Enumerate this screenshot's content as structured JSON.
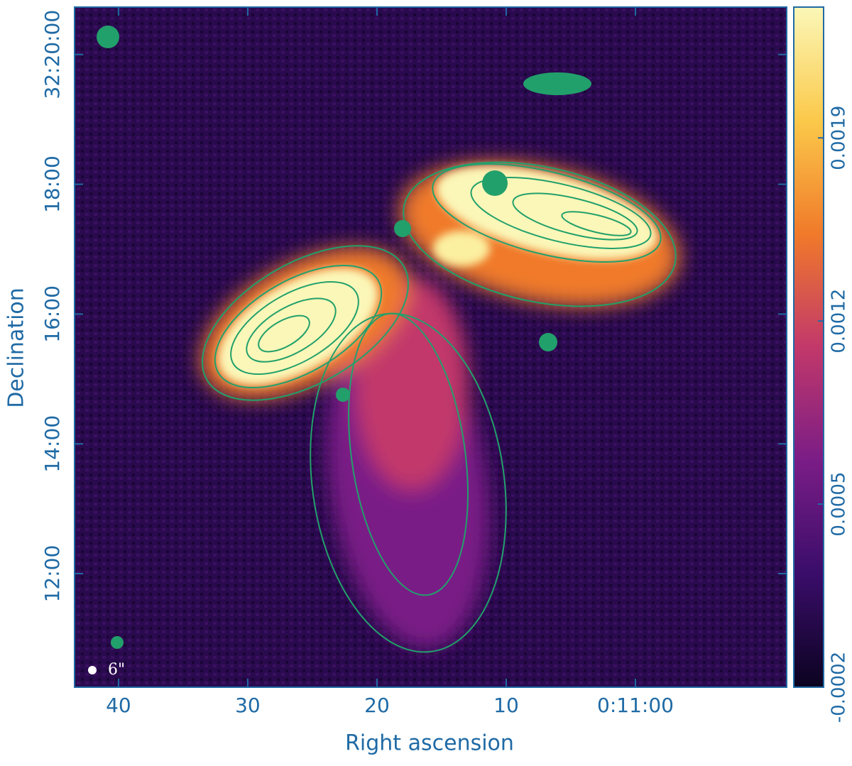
{
  "chart_data": {
    "type": "image",
    "x_label": "Right ascension",
    "y_label": "Declination",
    "xlim": [
      43.4,
      -11.7
    ],
    "xticks": [
      {
        "value": 40,
        "label": "40"
      },
      {
        "value": 30,
        "label": "30"
      },
      {
        "value": 20,
        "label": "20"
      },
      {
        "value": 10,
        "label": "10"
      },
      {
        "value": 0,
        "label": "0:11:00"
      }
    ],
    "ylim": [
      10.25,
      20.73
    ],
    "yticks": [
      {
        "value": 12,
        "label": "12:00"
      },
      {
        "value": 14,
        "label": "14:00"
      },
      {
        "value": 16,
        "label": "16:00"
      },
      {
        "value": 18,
        "label": "18:00"
      },
      {
        "value": 20,
        "label": "32:20:00"
      }
    ],
    "colorbar": {
      "lim": [
        -0.0002,
        0.0024
      ],
      "ticks": [
        -0.0002,
        0.0005,
        0.0012,
        0.0019
      ],
      "colors": [
        "#0b0320",
        "#3a0d6a",
        "#7a1d86",
        "#c2386a",
        "#f07a2a",
        "#fbc94a",
        "#fbf7b8"
      ]
    },
    "beam_label": "6\"",
    "axis_color": "#1f6aa5",
    "contour_color": "#22a06b"
  }
}
